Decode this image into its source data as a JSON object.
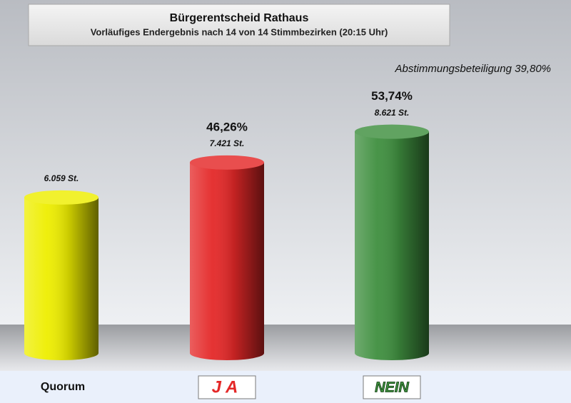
{
  "chart_data": {
    "type": "cylinder",
    "title": "Bürgerentscheid Rathaus",
    "subtitle": "Vorläufiges Endergebnis nach 14 von 14 Stimmbezirken (20:15 Uhr)",
    "annotation": "Abstimmungsbeteiligung 39,80%",
    "categories": [
      "Quorum",
      "JA",
      "NEIN"
    ],
    "values": [
      6059,
      7421,
      8621
    ],
    "value_labels": [
      "6.059 St.",
      "7.421 St.",
      "8.621 St."
    ],
    "shares": [
      null,
      46.26,
      53.74
    ],
    "share_labels": [
      null,
      "46,26%",
      "53,74%"
    ],
    "colors": [
      "#eeee00",
      "#e42828",
      "#3f8f3f"
    ],
    "ylim": [
      0,
      10000
    ]
  }
}
